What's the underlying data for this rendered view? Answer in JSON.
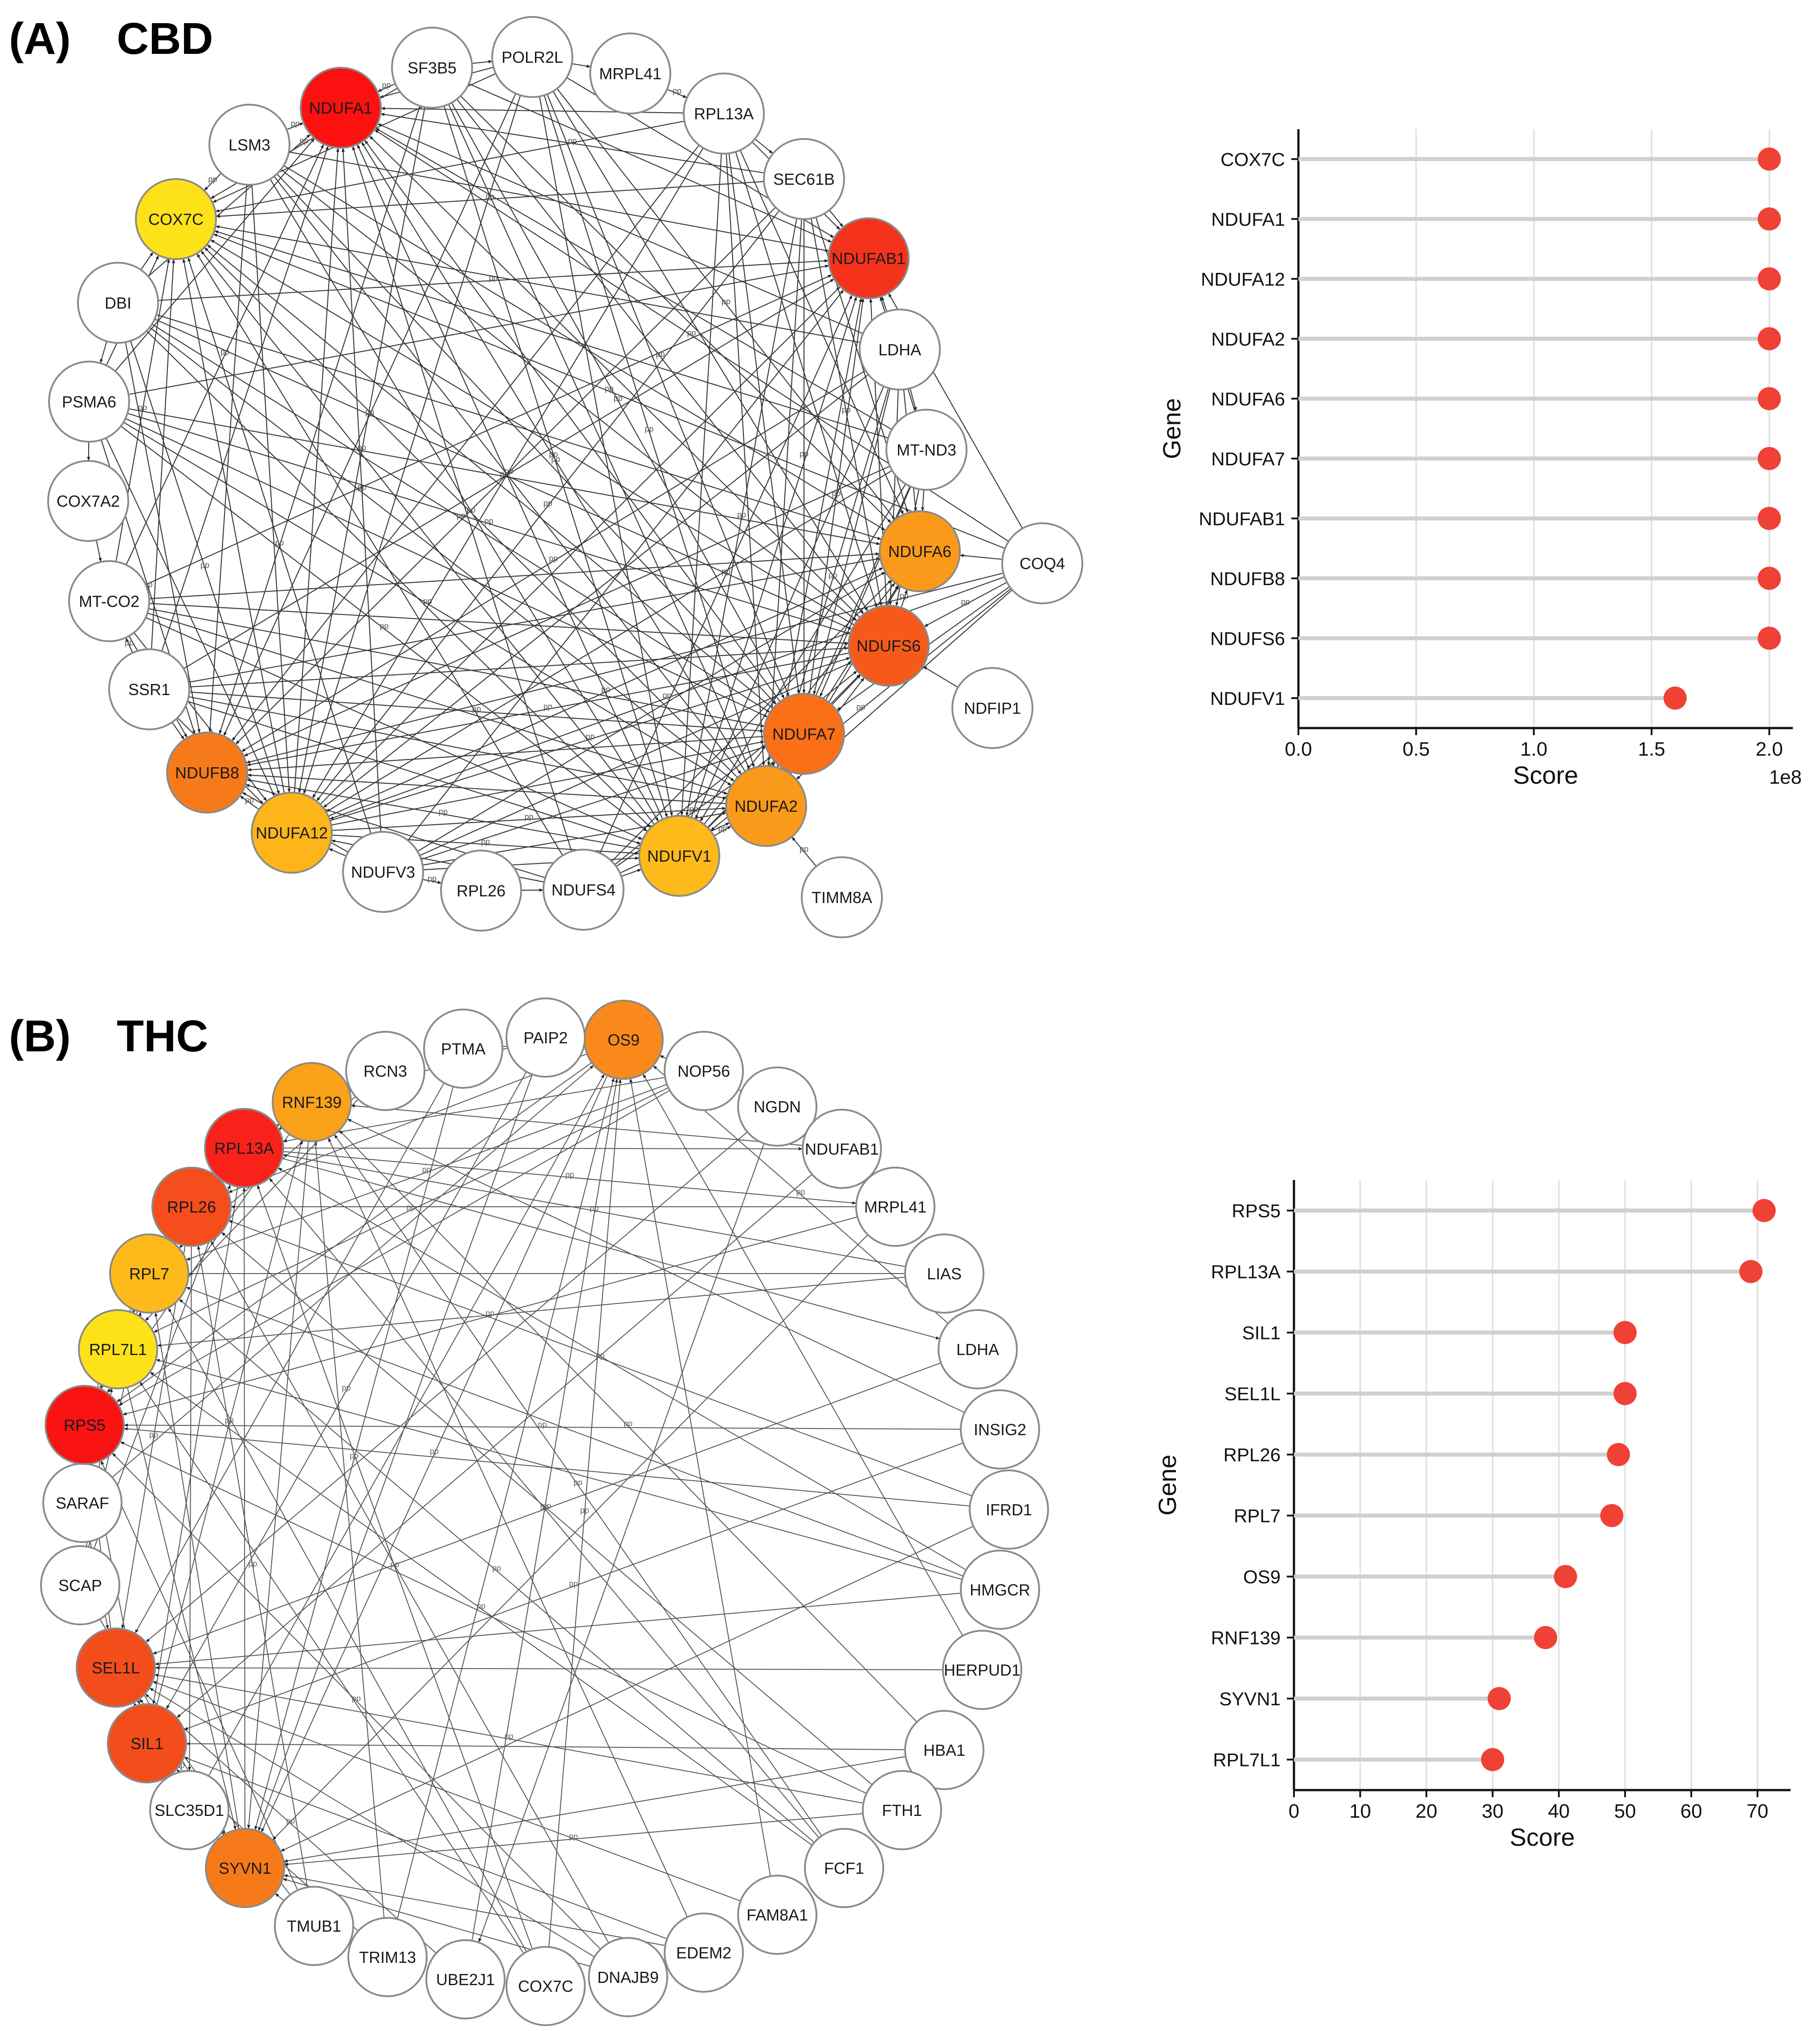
{
  "panelA": {
    "label": "(A)",
    "title": "CBD",
    "edge_label": "pp",
    "network": {
      "nodes": [
        {
          "name": "NDUFA1",
          "color": "#fc1010"
        },
        {
          "name": "SF3B5",
          "color": "#ffffff"
        },
        {
          "name": "POLR2L",
          "color": "#ffffff"
        },
        {
          "name": "MRPL41",
          "color": "#ffffff"
        },
        {
          "name": "RPL13A",
          "color": "#ffffff"
        },
        {
          "name": "SEC61B",
          "color": "#ffffff"
        },
        {
          "name": "NDUFAB1",
          "color": "#f5321c"
        },
        {
          "name": "LDHA",
          "color": "#ffffff"
        },
        {
          "name": "MT-ND3",
          "color": "#ffffff"
        },
        {
          "name": "NDUFA6",
          "color": "#fb9a1a"
        },
        {
          "name": "COQ4",
          "color": "#ffffff"
        },
        {
          "name": "NDUFS6",
          "color": "#f55a1a"
        },
        {
          "name": "NDFIP1",
          "color": "#ffffff"
        },
        {
          "name": "NDUFA7",
          "color": "#fb6f16"
        },
        {
          "name": "NDUFA2",
          "color": "#fb9a1a"
        },
        {
          "name": "TIMM8A",
          "color": "#ffffff"
        },
        {
          "name": "NDUFV1",
          "color": "#fdba1a"
        },
        {
          "name": "NDUFS4",
          "color": "#ffffff"
        },
        {
          "name": "RPL26",
          "color": "#ffffff"
        },
        {
          "name": "NDUFV3",
          "color": "#ffffff"
        },
        {
          "name": "NDUFA12",
          "color": "#fdb51a"
        },
        {
          "name": "NDUFB8",
          "color": "#f77a1a"
        },
        {
          "name": "SSR1",
          "color": "#ffffff"
        },
        {
          "name": "MT-CO2",
          "color": "#ffffff"
        },
        {
          "name": "COX7A2",
          "color": "#ffffff"
        },
        {
          "name": "PSMA6",
          "color": "#ffffff"
        },
        {
          "name": "DBI",
          "color": "#ffffff"
        },
        {
          "name": "COX7C",
          "color": "#fde21a"
        },
        {
          "name": "LSM3",
          "color": "#ffffff"
        }
      ]
    },
    "chart_data": {
      "type": "scatter",
      "style": "lollipop",
      "categories": [
        "COX7C",
        "NDUFA1",
        "NDUFA12",
        "NDUFA2",
        "NDUFA6",
        "NDUFA7",
        "NDUFAB1",
        "NDUFB8",
        "NDUFS6",
        "NDUFV1"
      ],
      "values": [
        200000000,
        200000000,
        200000000,
        200000000,
        200000000,
        200000000,
        200000000,
        200000000,
        200000000,
        160000000
      ],
      "xlabel": "Score",
      "ylabel": "Gene",
      "xlim": [
        0,
        210000000
      ],
      "xticks": [
        0,
        50000000,
        100000000,
        150000000,
        200000000
      ],
      "xtick_labels": [
        "0.0",
        "0.5",
        "1.0",
        "1.5",
        "2.0"
      ],
      "multiplier_label": "1e8",
      "marker_color": "#ef4136",
      "grid": true
    }
  },
  "panelB": {
    "label": "(B)",
    "title": "THC",
    "edge_label": "pp",
    "network": {
      "nodes": [
        {
          "name": "OS9",
          "color": "#f9891a"
        },
        {
          "name": "NOP56",
          "color": "#ffffff"
        },
        {
          "name": "NGDN",
          "color": "#ffffff"
        },
        {
          "name": "NDUFAB1",
          "color": "#ffffff"
        },
        {
          "name": "MRPL41",
          "color": "#ffffff"
        },
        {
          "name": "LIAS",
          "color": "#ffffff"
        },
        {
          "name": "LDHA",
          "color": "#ffffff"
        },
        {
          "name": "INSIG2",
          "color": "#ffffff"
        },
        {
          "name": "IFRD1",
          "color": "#ffffff"
        },
        {
          "name": "HMGCR",
          "color": "#ffffff"
        },
        {
          "name": "HERPUD1",
          "color": "#ffffff"
        },
        {
          "name": "HBA1",
          "color": "#ffffff"
        },
        {
          "name": "FTH1",
          "color": "#ffffff"
        },
        {
          "name": "FCF1",
          "color": "#ffffff"
        },
        {
          "name": "FAM8A1",
          "color": "#ffffff"
        },
        {
          "name": "EDEM2",
          "color": "#ffffff"
        },
        {
          "name": "DNAJB9",
          "color": "#ffffff"
        },
        {
          "name": "COX7C",
          "color": "#ffffff"
        },
        {
          "name": "UBE2J1",
          "color": "#ffffff"
        },
        {
          "name": "TRIM13",
          "color": "#ffffff"
        },
        {
          "name": "TMUB1",
          "color": "#ffffff"
        },
        {
          "name": "SYVN1",
          "color": "#f77a1a"
        },
        {
          "name": "SLC35D1",
          "color": "#ffffff"
        },
        {
          "name": "SIL1",
          "color": "#f44d1c"
        },
        {
          "name": "SEL1L",
          "color": "#f44d1c"
        },
        {
          "name": "SCAP",
          "color": "#ffffff"
        },
        {
          "name": "SARAF",
          "color": "#ffffff"
        },
        {
          "name": "RPS5",
          "color": "#fb1212"
        },
        {
          "name": "RPL7L1",
          "color": "#fde21a"
        },
        {
          "name": "RPL7",
          "color": "#fdba1a"
        },
        {
          "name": "RPL26",
          "color": "#f54d1c"
        },
        {
          "name": "RPL13A",
          "color": "#f8221a"
        },
        {
          "name": "RNF139",
          "color": "#fba21a"
        },
        {
          "name": "RCN3",
          "color": "#ffffff"
        },
        {
          "name": "PTMA",
          "color": "#ffffff"
        },
        {
          "name": "PAIP2",
          "color": "#ffffff"
        }
      ]
    },
    "chart_data": {
      "type": "scatter",
      "style": "lollipop",
      "categories": [
        "RPS5",
        "RPL13A",
        "SIL1",
        "SEL1L",
        "RPL26",
        "RPL7",
        "OS9",
        "RNF139",
        "SYVN1",
        "RPL7L1"
      ],
      "values": [
        71,
        69,
        50,
        50,
        49,
        48,
        41,
        38,
        31,
        30
      ],
      "xlabel": "Score",
      "ylabel": "Gene",
      "xlim": [
        0,
        75
      ],
      "xticks": [
        0,
        10,
        20,
        30,
        40,
        50,
        60,
        70
      ],
      "xtick_labels": [
        "0",
        "10",
        "20",
        "30",
        "40",
        "50",
        "60",
        "70"
      ],
      "marker_color": "#ef4136",
      "grid": true
    }
  }
}
